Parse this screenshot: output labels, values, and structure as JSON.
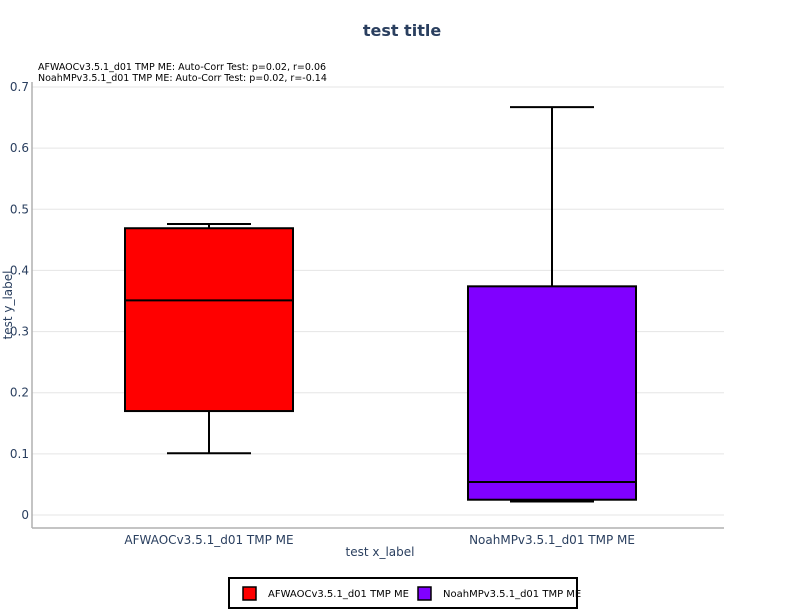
{
  "chart_data": {
    "type": "box",
    "title": "test title",
    "xlabel": "test x_label",
    "ylabel": "test y_label",
    "ylim": [
      -0.02,
      0.7
    ],
    "yticks": [
      0,
      0.1,
      0.2,
      0.3,
      0.4,
      0.5,
      0.6,
      0.7
    ],
    "ytick_labels": [
      "0",
      "0.1",
      "0.2",
      "0.3",
      "0.4",
      "0.5",
      "0.6",
      "0.7"
    ],
    "grid": true,
    "legend_position": "bottom-center",
    "annotations": [
      "AFWAOCv3.5.1_d01 TMP ME: Auto-Corr Test: p=0.02, r=0.06",
      "NoahMPv3.5.1_d01 TMP ME: Auto-Corr Test: p=0.02, r=-0.14"
    ],
    "categories": [
      "AFWAOCv3.5.1_d01 TMP ME",
      "NoahMPv3.5.1_d01 TMP ME"
    ],
    "series": [
      {
        "name": "AFWAOCv3.5.1_d01 TMP ME",
        "color": "#ff0000",
        "min": 0.101,
        "q1": 0.17,
        "median": 0.351,
        "q3": 0.469,
        "max": 0.476
      },
      {
        "name": "NoahMPv3.5.1_d01 TMP ME",
        "color": "#8000ff",
        "min": 0.022,
        "q1": 0.025,
        "median": 0.054,
        "q3": 0.374,
        "max": 0.667
      }
    ]
  }
}
